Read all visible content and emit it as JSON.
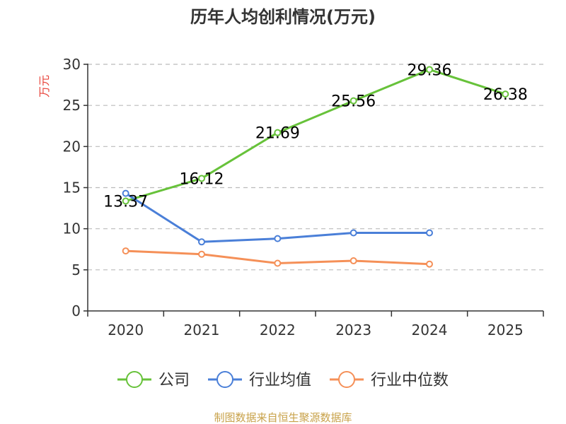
{
  "chart_data": {
    "type": "line",
    "title": "历年人均创利情况(万元)",
    "ylabel": "万元",
    "xlabel": "",
    "categories": [
      "2020",
      "2021",
      "2022",
      "2023",
      "2024",
      "2025"
    ],
    "ylim": [
      0,
      30
    ],
    "yticks": [
      0,
      5,
      10,
      15,
      20,
      25,
      30
    ],
    "grid": true,
    "legend_position": "bottom",
    "series": [
      {
        "name": "公司",
        "color": "#67c23a",
        "values": [
          13.37,
          16.12,
          21.69,
          25.56,
          29.36,
          26.38
        ],
        "labels": [
          "13.37",
          "16.12",
          "21.69",
          "25.56",
          "29.36",
          "26.38"
        ]
      },
      {
        "name": "行业均值",
        "color": "#4a7fd8",
        "values": [
          14.3,
          8.4,
          8.8,
          9.5,
          9.5,
          null
        ],
        "labels": []
      },
      {
        "name": "行业中位数",
        "color": "#f59058",
        "values": [
          7.3,
          6.9,
          5.8,
          6.1,
          5.7,
          null
        ],
        "labels": []
      }
    ]
  },
  "footer": {
    "source": "制图数据来自恒生聚源数据库"
  },
  "colors": {
    "title": "#333333",
    "ylabel": "#e8453c",
    "axis": "#333333",
    "grid": "#bbbbbb",
    "footer": "#c8a24a"
  }
}
